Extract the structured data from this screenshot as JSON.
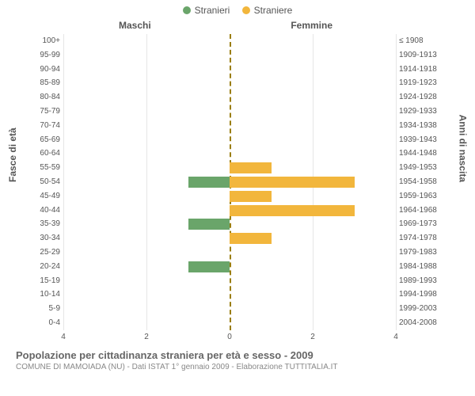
{
  "legend": {
    "series1": {
      "label": "Stranieri",
      "color": "#6aa56a"
    },
    "series2": {
      "label": "Straniere",
      "color": "#f2b63c"
    }
  },
  "columns": {
    "left": "Maschi",
    "right": "Femmine"
  },
  "axis_titles": {
    "left": "Fasce di età",
    "right": "Anni di nascita"
  },
  "chart": {
    "type": "population-pyramid",
    "xlim": [
      0,
      4
    ],
    "xtick_step": 2,
    "xticks": [
      4,
      2,
      0,
      2,
      4
    ],
    "centerline_color": "#9a7d0a",
    "grid_color": "#e6e6e6",
    "background_color": "#ffffff",
    "label_fontsize": 10,
    "rows": [
      {
        "age": "100+",
        "years": "≤ 1908",
        "male": 0,
        "female": 0
      },
      {
        "age": "95-99",
        "years": "1909-1913",
        "male": 0,
        "female": 0
      },
      {
        "age": "90-94",
        "years": "1914-1918",
        "male": 0,
        "female": 0
      },
      {
        "age": "85-89",
        "years": "1919-1923",
        "male": 0,
        "female": 0
      },
      {
        "age": "80-84",
        "years": "1924-1928",
        "male": 0,
        "female": 0
      },
      {
        "age": "75-79",
        "years": "1929-1933",
        "male": 0,
        "female": 0
      },
      {
        "age": "70-74",
        "years": "1934-1938",
        "male": 0,
        "female": 0
      },
      {
        "age": "65-69",
        "years": "1939-1943",
        "male": 0,
        "female": 0
      },
      {
        "age": "60-64",
        "years": "1944-1948",
        "male": 0,
        "female": 0
      },
      {
        "age": "55-59",
        "years": "1949-1953",
        "male": 0,
        "female": 1
      },
      {
        "age": "50-54",
        "years": "1954-1958",
        "male": 1,
        "female": 3
      },
      {
        "age": "45-49",
        "years": "1959-1963",
        "male": 0,
        "female": 1
      },
      {
        "age": "40-44",
        "years": "1964-1968",
        "male": 0,
        "female": 3
      },
      {
        "age": "35-39",
        "years": "1969-1973",
        "male": 1,
        "female": 0
      },
      {
        "age": "30-34",
        "years": "1974-1978",
        "male": 0,
        "female": 1
      },
      {
        "age": "25-29",
        "years": "1979-1983",
        "male": 0,
        "female": 0
      },
      {
        "age": "20-24",
        "years": "1984-1988",
        "male": 1,
        "female": 0
      },
      {
        "age": "15-19",
        "years": "1989-1993",
        "male": 0,
        "female": 0
      },
      {
        "age": "10-14",
        "years": "1994-1998",
        "male": 0,
        "female": 0
      },
      {
        "age": "5-9",
        "years": "1999-2003",
        "male": 0,
        "female": 0
      },
      {
        "age": "0-4",
        "years": "2004-2008",
        "male": 0,
        "female": 0
      }
    ]
  },
  "caption": {
    "title": "Popolazione per cittadinanza straniera per età e sesso - 2009",
    "subtitle": "COMUNE DI MAMOIADA (NU) - Dati ISTAT 1° gennaio 2009 - Elaborazione TUTTITALIA.IT"
  }
}
